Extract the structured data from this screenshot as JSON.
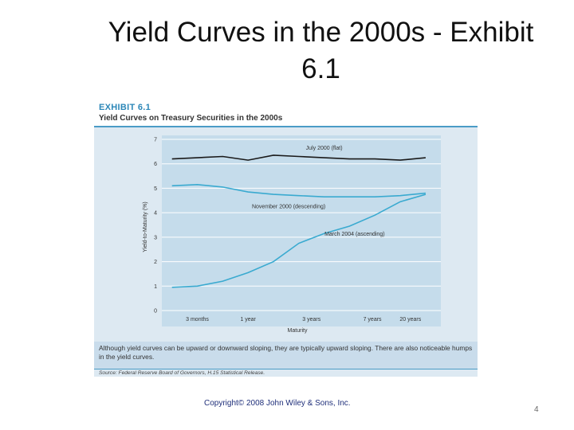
{
  "slide": {
    "title": "Yield Curves in the 2000s - Exhibit 6.1",
    "copyright": "Copyright© 2008 John Wiley & Sons, Inc.",
    "page_number": "4"
  },
  "exhibit": {
    "number": "EXHIBIT 6.1",
    "title": "Yield Curves on Treasury Securities in the 2000s",
    "caption": "Although yield curves can be upward or downward sloping, they are typically upward sloping. There are also noticeable humps in the yield curves.",
    "source": "Source: Federal Reserve Board of Governors, H.15 Statistical Release."
  },
  "chart_data": {
    "type": "line",
    "title": "Yield Curves on Treasury Securities in the 2000s",
    "xlabel": "Maturity",
    "ylabel": "Yield-to-Maturity (%)",
    "x": [
      0,
      0.5,
      1,
      1.5,
      2,
      2.5,
      3,
      3.5,
      4,
      4.5,
      5
    ],
    "x_tick_labels": [
      {
        "at": 0.5,
        "label": "3 months"
      },
      {
        "at": 1.5,
        "label": "1 year"
      },
      {
        "at": 2.75,
        "label": "3 years"
      },
      {
        "at": 3.95,
        "label": "7 years"
      },
      {
        "at": 4.7,
        "label": "20 years"
      }
    ],
    "xlim": [
      -0.2,
      5.3
    ],
    "ylim": [
      0,
      7
    ],
    "yticks": [
      0,
      1,
      2,
      3,
      4,
      5,
      6,
      7
    ],
    "grid": true,
    "series": [
      {
        "name": "July 2000 (flat)",
        "color": "#1a1a1a",
        "values": [
          6.2,
          6.25,
          6.3,
          6.15,
          6.35,
          6.3,
          6.25,
          6.2,
          6.2,
          6.15,
          6.25
        ]
      },
      {
        "name": "November 2000 (descending)",
        "color": "#3aaad0",
        "values": [
          5.1,
          5.15,
          5.05,
          4.85,
          4.75,
          4.7,
          4.65,
          4.65,
          4.65,
          4.7,
          4.8
        ]
      },
      {
        "name": "March 2004 (ascending)",
        "color": "#3aaad0",
        "values": [
          0.95,
          1.0,
          1.2,
          1.55,
          2.0,
          2.75,
          3.15,
          3.45,
          3.9,
          4.45,
          4.75
        ]
      }
    ]
  }
}
